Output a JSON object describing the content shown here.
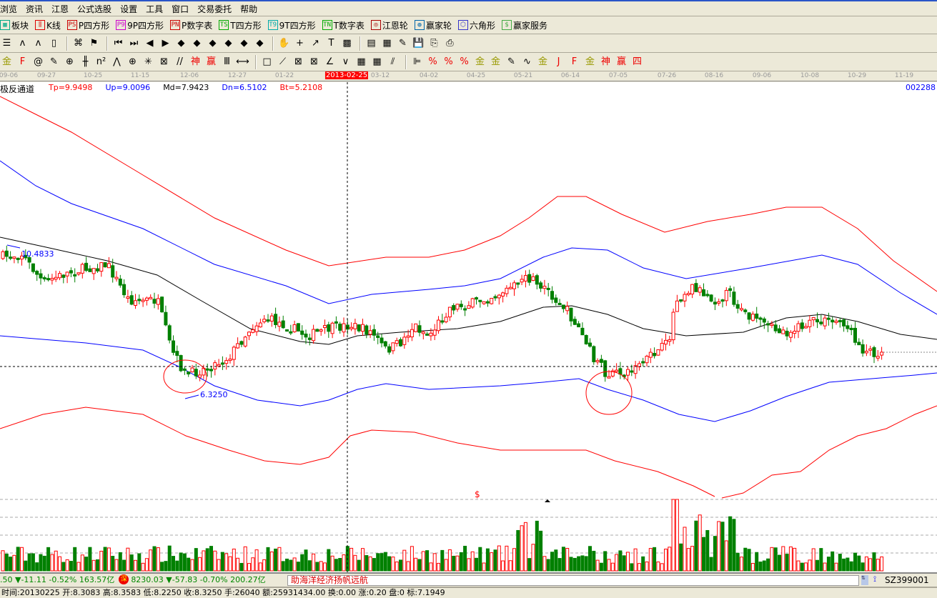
{
  "menu": [
    "浏览",
    "资讯",
    "江恩",
    "公式选股",
    "设置",
    "工具",
    "窗口",
    "交易委托",
    "帮助"
  ],
  "toolbar1": [
    {
      "icon": "▦",
      "label": "板块",
      "color": "#0a8"
    },
    {
      "icon": "⫼",
      "label": "K线",
      "color": "#d00"
    },
    {
      "icon": "PS",
      "label": "P四方形",
      "color": "#c00"
    },
    {
      "icon": "P9",
      "label": "9P四方形",
      "color": "#c0c"
    },
    {
      "icon": "PN",
      "label": "P数字表",
      "color": "#c00"
    },
    {
      "icon": "TS",
      "label": "T四方形",
      "color": "#0a0"
    },
    {
      "icon": "T9",
      "label": "9T四方形",
      "color": "#0aa"
    },
    {
      "icon": "TN",
      "label": "T数字表",
      "color": "#0a0"
    },
    {
      "icon": "◎",
      "label": "江恩轮",
      "color": "#a00"
    },
    {
      "icon": "◍",
      "label": "赢家轮",
      "color": "#06a"
    },
    {
      "icon": "⬡",
      "label": "六角形",
      "color": "#33c"
    },
    {
      "icon": "$",
      "label": "赢家服务",
      "color": "#4a4"
    }
  ],
  "toolbar2_icons": [
    {
      "name": "list-icon",
      "g": "☰"
    },
    {
      "name": "wave3-icon",
      "g": "ʌ"
    },
    {
      "name": "wave9-icon",
      "g": "ʌ"
    },
    {
      "name": "candle-icon",
      "g": "▯"
    },
    {
      "sep": true
    },
    {
      "name": "formula-icon",
      "g": "⌘"
    },
    {
      "name": "flag-icon",
      "g": "⚑"
    },
    {
      "sep": true
    },
    {
      "name": "first-icon",
      "g": "⏮"
    },
    {
      "name": "last-icon",
      "g": "⏭"
    },
    {
      "name": "left-icon",
      "g": "◀"
    },
    {
      "name": "right-icon",
      "g": "▶"
    },
    {
      "name": "diamond1-icon",
      "g": "◆"
    },
    {
      "name": "diamond2-icon",
      "g": "◆"
    },
    {
      "name": "diamond3-icon",
      "g": "◆"
    },
    {
      "name": "diamond4-icon",
      "g": "◆"
    },
    {
      "name": "diamond5-icon",
      "g": "◆"
    },
    {
      "name": "diamond6-icon",
      "g": "◆"
    },
    {
      "sep": true
    },
    {
      "name": "hand-icon",
      "g": "✋"
    },
    {
      "name": "crosshair-icon",
      "g": "+"
    },
    {
      "name": "line-icon",
      "g": "↗"
    },
    {
      "name": "stamp-icon",
      "g": "T"
    },
    {
      "name": "grid-icon",
      "g": "▩"
    },
    {
      "sep": true
    },
    {
      "name": "calendar-icon",
      "g": "▤"
    },
    {
      "name": "calculator-icon",
      "g": "▦"
    },
    {
      "name": "notes-icon",
      "g": "✎"
    },
    {
      "name": "save-icon",
      "g": "💾"
    },
    {
      "name": "network-icon",
      "g": "⎘"
    },
    {
      "name": "printer-icon",
      "g": "⎙"
    }
  ],
  "toolbar3_icons": [
    {
      "name": "gold-line-icon",
      "g": "金"
    },
    {
      "name": "f-line-icon",
      "g": "F"
    },
    {
      "name": "spiral-icon",
      "g": "@"
    },
    {
      "name": "pen-icon",
      "g": "✎"
    },
    {
      "name": "circle-icon",
      "g": "⊕"
    },
    {
      "name": "bars-icon",
      "g": "╫"
    },
    {
      "name": "n2-icon",
      "g": "n²"
    },
    {
      "name": "fan-icon",
      "g": "⋀"
    },
    {
      "name": "gann-circle-icon",
      "g": "⊕"
    },
    {
      "name": "web-icon",
      "g": "✳"
    },
    {
      "name": "box-icon",
      "g": "⊠"
    },
    {
      "name": "slash-icon",
      "g": "//"
    },
    {
      "name": "shen-icon",
      "g": "神"
    },
    {
      "name": "ying-icon",
      "g": "赢"
    },
    {
      "name": "comb-icon",
      "g": "Ⅲ"
    },
    {
      "name": "measure-icon",
      "g": "⟷"
    },
    {
      "sep": true
    },
    {
      "name": "rect-icon",
      "g": "□"
    },
    {
      "name": "fan-lines-icon",
      "g": "⟋"
    },
    {
      "name": "box-fan-icon",
      "g": "⊠"
    },
    {
      "name": "box-fan2-icon",
      "g": "⊠"
    },
    {
      "name": "angle-icon",
      "g": "∠"
    },
    {
      "name": "v-icon",
      "g": "∨"
    },
    {
      "name": "grid1-icon",
      "g": "▦"
    },
    {
      "name": "grid2-icon",
      "g": "▦"
    },
    {
      "name": "parallel-icon",
      "g": "⫽"
    },
    {
      "sep": true
    },
    {
      "name": "ruler-icon",
      "g": "⊫"
    },
    {
      "name": "pct-slash-icon",
      "g": "%"
    },
    {
      "name": "percent-icon",
      "g": "%"
    },
    {
      "name": "pct-lines-icon",
      "g": "%"
    },
    {
      "name": "gold-coin-icon",
      "g": "金"
    },
    {
      "name": "gold-lines-icon",
      "g": "金"
    },
    {
      "name": "tools-icon",
      "g": "✎"
    },
    {
      "name": "sine-icon",
      "g": "∿"
    },
    {
      "name": "gold-red-icon",
      "g": "金"
    },
    {
      "name": "j-angle-icon",
      "g": "J"
    },
    {
      "name": "f-angle-icon",
      "g": "F"
    },
    {
      "name": "gold-angle-icon",
      "g": "金"
    },
    {
      "name": "shen-angle-icon",
      "g": "神"
    },
    {
      "name": "ying-angle-icon",
      "g": "赢"
    },
    {
      "name": "si-angle-icon",
      "g": "四"
    }
  ],
  "dates": [
    "09-06",
    "09-27",
    "10-25",
    "11-15",
    "12-06",
    "12-27",
    "01-22",
    "2013-02-25",
    "03-12",
    "04-02",
    "04-25",
    "05-21",
    "06-14",
    "07-05",
    "07-26",
    "08-16",
    "09-06",
    "10-08",
    "10-29",
    "11-19"
  ],
  "indicator": {
    "name": "极反通道",
    "tp": "Tp=9.9498",
    "up": "Up=9.0096",
    "md": "Md=7.9423",
    "dn": "Dn=6.5102",
    "bt": "Bt=5.2108"
  },
  "stock_code": "002288",
  "annotations": {
    "high": "10.4833",
    "low": "6.3250",
    "marker": "$"
  },
  "colors": {
    "up": "#ff0000",
    "down": "#008000",
    "tp_bt": "#ff0000",
    "up_dn": "#0000ff",
    "md": "#000000"
  },
  "ticker": {
    "index1": ".50 ▼-11.11 -0.52% 163.57亿",
    "badge": "深",
    "index2": "8230.03 ▼-57.83 -0.70% 200.27亿",
    "news": "助海洋经济扬帆远航",
    "code": "SZ399001"
  },
  "status": "时间:20130225 开:8.3083 高:8.3583 低:8.2250 收:8.3250 手:26040 额:25931434.00 换:0.00 涨:0.20 盘:0 标:7.1949"
}
